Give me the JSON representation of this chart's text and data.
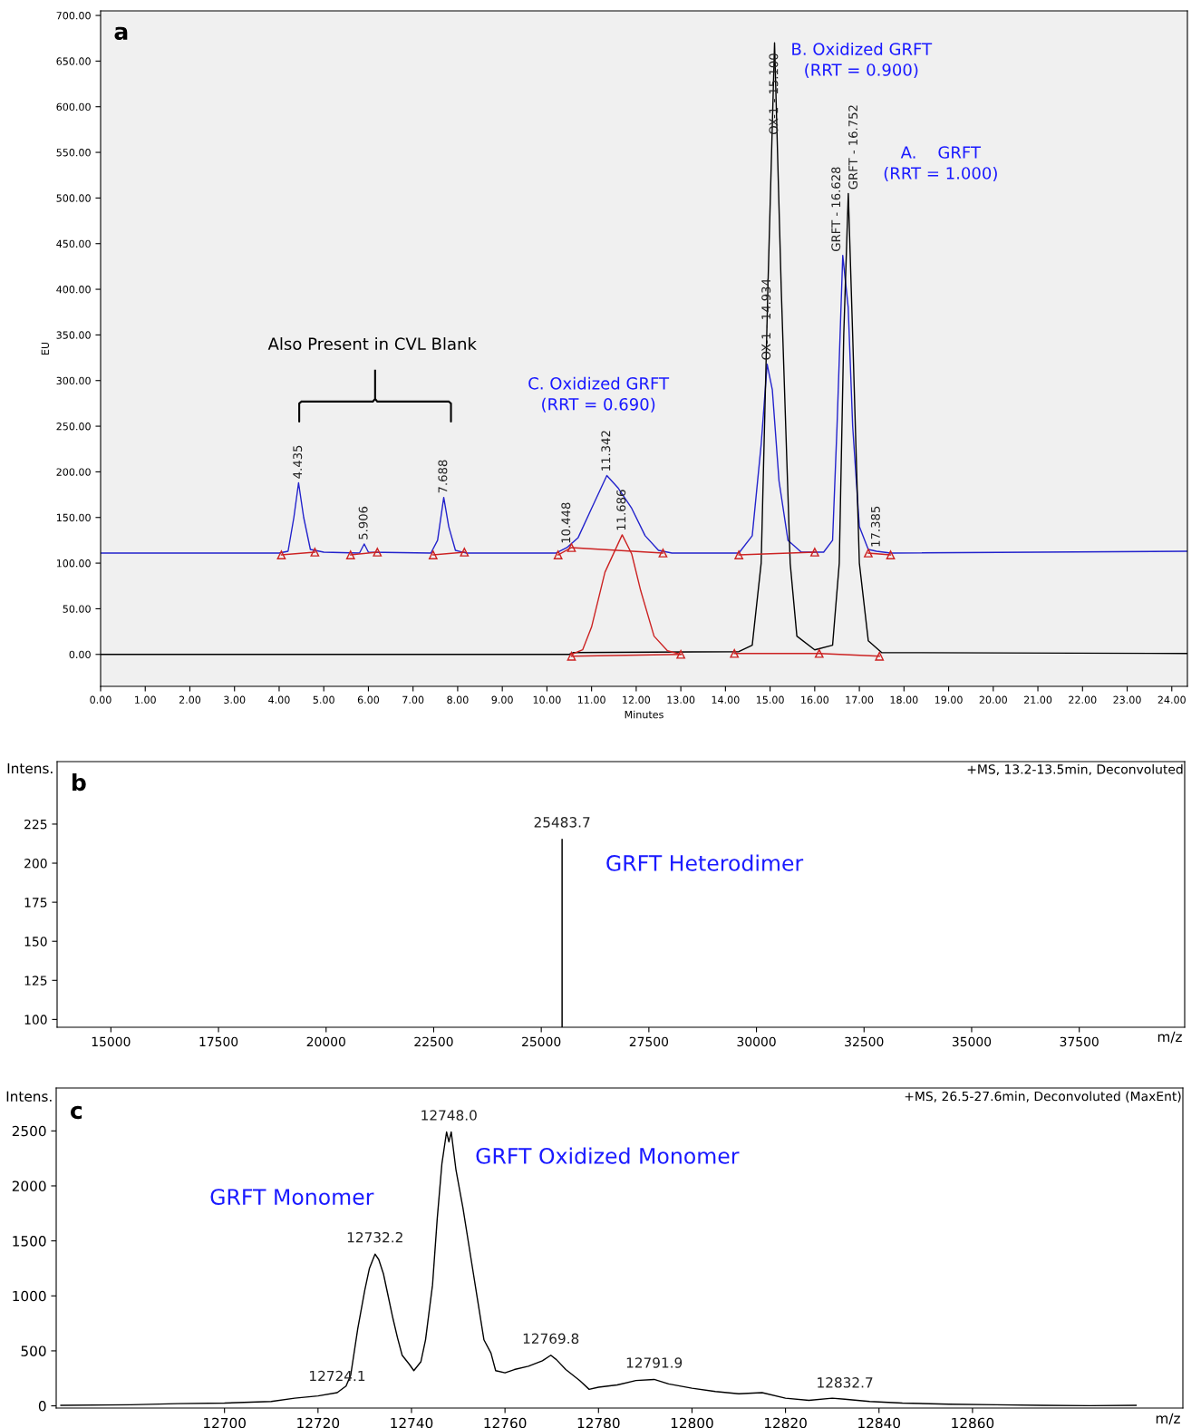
{
  "chart_data": [
    {
      "type": "line",
      "xlabel": "Minutes",
      "ylabel": "EU",
      "xlim": [
        0,
        24.35
      ],
      "ylim": [
        -35,
        705
      ],
      "xticks": [
        {
          "value": 0,
          "label": "0.00"
        },
        {
          "value": 1,
          "label": "1.00"
        },
        {
          "value": 2,
          "label": "2.00"
        },
        {
          "value": 3,
          "label": "3.00"
        },
        {
          "value": 4,
          "label": "4.00"
        },
        {
          "value": 5,
          "label": "5.00"
        },
        {
          "value": 6,
          "label": "6.00"
        },
        {
          "value": 7,
          "label": "7.00"
        },
        {
          "value": 8,
          "label": "8.00"
        },
        {
          "value": 9,
          "label": "9.00"
        },
        {
          "value": 10,
          "label": "10.00"
        },
        {
          "value": 11,
          "label": "11.00"
        },
        {
          "value": 12,
          "label": "12.00"
        },
        {
          "value": 13,
          "label": "13.00"
        },
        {
          "value": 14,
          "label": "14.00"
        },
        {
          "value": 15,
          "label": "15.00"
        },
        {
          "value": 16,
          "label": "16.00"
        },
        {
          "value": 17,
          "label": "17.00"
        },
        {
          "value": 18,
          "label": "18.00"
        },
        {
          "value": 19,
          "label": "19.00"
        },
        {
          "value": 20,
          "label": "20.00"
        },
        {
          "value": 21,
          "label": "21.00"
        },
        {
          "value": 22,
          "label": "22.00"
        },
        {
          "value": 23,
          "label": "23.00"
        },
        {
          "value": 24,
          "label": "24.00"
        }
      ],
      "yticks": [
        {
          "value": 0,
          "label": "0.00"
        },
        {
          "value": 50,
          "label": "50.00"
        },
        {
          "value": 100,
          "label": "100.00"
        },
        {
          "value": 150,
          "label": "150.00"
        },
        {
          "value": 200,
          "label": "200.00"
        },
        {
          "value": 250,
          "label": "250.00"
        },
        {
          "value": 300,
          "label": "300.00"
        },
        {
          "value": 350,
          "label": "350.00"
        },
        {
          "value": 400,
          "label": "400.00"
        },
        {
          "value": 450,
          "label": "450.00"
        },
        {
          "value": 500,
          "label": "500.00"
        },
        {
          "value": 550,
          "label": "550.00"
        },
        {
          "value": 600,
          "label": "600.00"
        },
        {
          "value": 650,
          "label": "650.00"
        },
        {
          "value": 700,
          "label": "700.00"
        }
      ],
      "series": [
        {
          "color": "#2222cc",
          "x": [
            0,
            4.0,
            4.2,
            4.33,
            4.435,
            4.55,
            4.7,
            5.0,
            5.8,
            5.906,
            6.0,
            7.4,
            7.55,
            7.688,
            7.8,
            7.95,
            8.2,
            10.2,
            10.448,
            10.7,
            11.0,
            11.342,
            11.6,
            11.9,
            12.2,
            12.5,
            12.8,
            14.3,
            14.6,
            14.8,
            14.934,
            15.05,
            15.2,
            15.4,
            15.7,
            16.2,
            16.4,
            16.5,
            16.628,
            16.75,
            16.85,
            17.0,
            17.2,
            17.385,
            17.7,
            24.35
          ],
          "values": [
            111,
            111,
            113,
            150,
            188,
            150,
            115,
            112,
            111,
            121,
            112,
            111,
            125,
            172,
            140,
            114,
            111,
            111,
            117,
            128,
            160,
            196,
            182,
            160,
            130,
            114,
            111,
            111,
            130,
            230,
            318,
            290,
            190,
            125,
            112,
            112,
            125,
            250,
            437,
            380,
            250,
            140,
            115,
            113,
            111,
            113
          ]
        },
        {
          "color": "#000000",
          "x": [
            0,
            10.5,
            10.6,
            14.3,
            14.6,
            14.8,
            14.95,
            15.1,
            15.25,
            15.45,
            15.6,
            16.0,
            16.4,
            16.55,
            16.65,
            16.752,
            16.85,
            17.0,
            17.2,
            17.5,
            24.35
          ],
          "values": [
            0,
            0,
            2,
            3,
            10,
            100,
            400,
            670,
            400,
            100,
            20,
            5,
            10,
            100,
            350,
            505,
            350,
            100,
            15,
            2,
            1
          ]
        },
        {
          "color": "#cc2222",
          "x": [
            10.55,
            10.8,
            11.0,
            11.3,
            11.686,
            11.9,
            12.1,
            12.4,
            12.7,
            13.0
          ],
          "values": [
            0,
            5,
            30,
            90,
            131,
            110,
            70,
            20,
            4,
            0
          ]
        },
        {
          "color": "#cc2222",
          "marker": "triangle",
          "x": [
            4.05,
            4.8,
            null,
            5.6,
            6.2,
            null,
            7.45,
            8.15,
            null,
            10.25,
            10.55,
            12.6,
            null,
            14.3,
            16.0,
            null,
            17.2,
            17.7,
            null,
            10.55,
            13.0,
            null,
            14.2,
            16.1,
            17.45
          ],
          "values": [
            109,
            112,
            null,
            109,
            112,
            null,
            109,
            112,
            null,
            109,
            117,
            111,
            null,
            109,
            112,
            null,
            111,
            109,
            null,
            -2,
            0,
            null,
            1,
            1,
            -2
          ]
        }
      ],
      "annotations": [
        "a",
        "Also Present in CVL Blank",
        "C. Oxidized GRFT\n(RRT = 0.690)",
        "B. Oxidized GRFT\n(RRT = 0.900)",
        "A.    GRFT\n(RRT = 1.000)",
        {
          "text": "4.435",
          "x": 4.435,
          "y": 188
        },
        {
          "text": "5.906",
          "x": 5.906,
          "y": 121
        },
        {
          "text": "7.688",
          "x": 7.688,
          "y": 172
        },
        {
          "text": "10.448",
          "x": 10.448,
          "y": 117
        },
        {
          "text": "11.342",
          "x": 11.342,
          "y": 196
        },
        {
          "text": "11.686",
          "x": 11.686,
          "y": 131
        },
        {
          "text": "OX-1 - 14.934",
          "x": 14.934,
          "y": 318
        },
        {
          "text": "OX-1 - 15.100",
          "x": 15.1,
          "y": 670
        },
        {
          "text": "GRFT - 16.628",
          "x": 16.628,
          "y": 437
        },
        {
          "text": "GRFT - 16.752",
          "x": 16.752,
          "y": 505
        },
        {
          "text": "17.385",
          "x": 17.385,
          "y": 113
        }
      ]
    },
    {
      "type": "bar",
      "xlabel": "m/z",
      "ylabel": "Intens.",
      "xlim": [
        13750,
        39950
      ],
      "ylim": [
        95,
        265
      ],
      "xticks": [
        15000,
        17500,
        20000,
        22500,
        25000,
        27500,
        30000,
        32500,
        35000,
        37500
      ],
      "yticks": [
        100,
        125,
        150,
        175,
        200,
        225
      ],
      "series": [
        {
          "color": "#000000",
          "x": [
            25483.7
          ],
          "values": [
            215.5
          ]
        }
      ],
      "annotations": [
        "b",
        "GRFT Heterodimer",
        "+MS, 13.2-13.5min, Deconvoluted",
        {
          "text": "25483.7",
          "x": 25483.7,
          "y": 215.5
        }
      ]
    },
    {
      "type": "line",
      "xlabel": "m/z",
      "ylabel": "Intens.",
      "xlim": [
        12664,
        12905
      ],
      "ylim": [
        -20,
        2890
      ],
      "xticks": [
        12700,
        12720,
        12740,
        12760,
        12780,
        12800,
        12820,
        12840,
        12860
      ],
      "yticks": [
        0,
        500,
        1000,
        1500,
        2000,
        2500
      ],
      "series": [
        {
          "color": "#000000",
          "x": [
            12665,
            12680,
            12690,
            12700,
            12710,
            12715,
            12720,
            12724.1,
            12726,
            12727,
            12728.5,
            12730,
            12731,
            12732.2,
            12733,
            12734,
            12735,
            12736,
            12737,
            12738,
            12739.5,
            12740.5,
            12742,
            12743,
            12744.5,
            12745.5,
            12746.5,
            12747.5,
            12748.0,
            12748.5,
            12749.5,
            12751,
            12752.5,
            12754,
            12755.5,
            12757,
            12758,
            12760,
            12762,
            12765,
            12768,
            12769.8,
            12771,
            12773,
            12776,
            12778,
            12780,
            12784,
            12788,
            12791.9,
            12795,
            12800,
            12805,
            12810,
            12815,
            12820,
            12825,
            12830,
            12832.7,
            12838,
            12845,
            12855,
            12865,
            12875,
            12885,
            12895
          ],
          "values": [
            5,
            10,
            20,
            25,
            40,
            70,
            90,
            120,
            180,
            280,
            700,
            1050,
            1250,
            1380,
            1330,
            1200,
            1000,
            800,
            620,
            460,
            380,
            320,
            400,
            600,
            1100,
            1700,
            2200,
            2490,
            2400,
            2490,
            2150,
            1800,
            1400,
            1000,
            600,
            480,
            320,
            300,
            330,
            360,
            410,
            460,
            420,
            330,
            230,
            150,
            170,
            190,
            230,
            240,
            200,
            160,
            130,
            110,
            120,
            70,
            50,
            70,
            60,
            40,
            25,
            15,
            10,
            5,
            2,
            5
          ]
        }
      ],
      "annotations": [
        "c",
        "GRFT Monomer",
        "GRFT Oxidized Monomer",
        "+MS, 26.5-27.6min, Deconvoluted (MaxEnt)",
        {
          "text": "12724.1",
          "x": 12724.1,
          "y": 120
        },
        {
          "text": "12732.2",
          "x": 12732.2,
          "y": 1380
        },
        {
          "text": "12748.0",
          "x": 12748.0,
          "y": 2490
        },
        {
          "text": "12769.8",
          "x": 12769.8,
          "y": 460
        },
        {
          "text": "12791.9",
          "x": 12791.9,
          "y": 240
        },
        {
          "text": "12832.7",
          "x": 12832.7,
          "y": 60
        }
      ]
    }
  ]
}
